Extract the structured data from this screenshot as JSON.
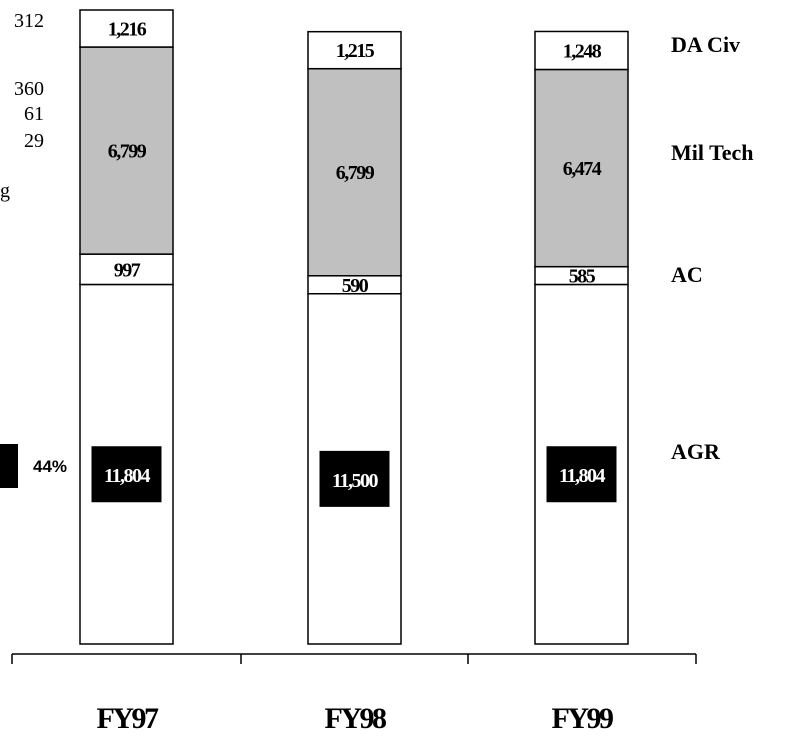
{
  "left_fragments": {
    "t1": "312",
    "t2": "360",
    "t3": "61",
    "t4": "29",
    "t5": "g",
    "pct": "44%",
    "marker_color": "#000000"
  },
  "chart_data": {
    "type": "bar",
    "stacked": true,
    "categories": [
      "FY97",
      "FY98",
      "FY99"
    ],
    "series": [
      {
        "name": "AGR",
        "values": [
          11804,
          11500,
          11804
        ],
        "fill": "#ffffff",
        "label_fill": "#000000",
        "label_color": "#ffffff"
      },
      {
        "name": "AC",
        "values": [
          997,
          590,
          585
        ],
        "fill": "#ffffff",
        "label_color": "#000000"
      },
      {
        "name": "Mil Tech",
        "values": [
          6799,
          6799,
          6474
        ],
        "fill": "#c0c0c0",
        "label_color": "#000000"
      },
      {
        "name": "DA Civ",
        "values": [
          1216,
          1215,
          1248
        ],
        "fill": "#ffffff",
        "label_color": "#000000"
      }
    ],
    "data_labels": [
      [
        "11,804",
        "11,500",
        "11,804"
      ],
      [
        "997",
        "590",
        "585"
      ],
      [
        "6,799",
        "6,799",
        "6,474"
      ],
      [
        "1,216",
        "1,215",
        "1,248"
      ]
    ],
    "legend_position": "right",
    "grid": false
  }
}
